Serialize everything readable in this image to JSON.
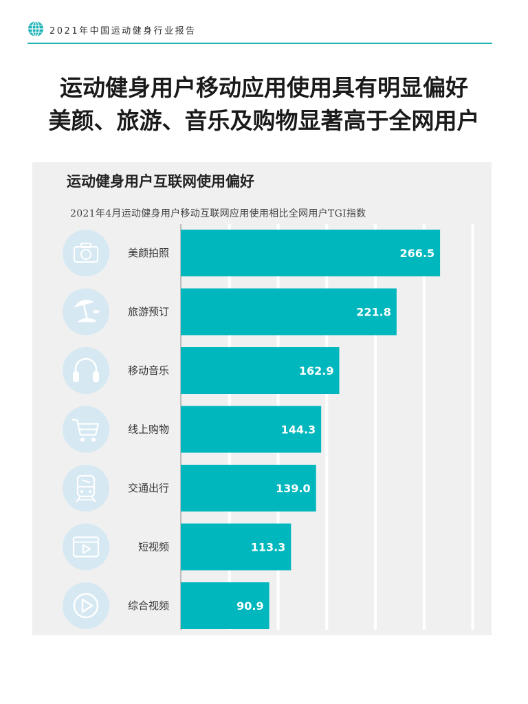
{
  "header": {
    "text": "2021年中国运动健身行业报告"
  },
  "title": {
    "line1": "运动健身用户移动应用使用具有明显偏好",
    "line2": "美颜、旅游、音乐及购物显著高于全网用户"
  },
  "colors": {
    "accent": "#1fb3b6",
    "bar": "#00b7bd",
    "icon_bg": "#d6e8f2",
    "icon_fg": "#ffffff"
  },
  "chart_data": {
    "type": "bar",
    "orientation": "horizontal",
    "title": "运动健身用户互联网使用偏好",
    "subtitle": "2021年4月运动健身用户移动互联网应用使用相比全网用户TGI指数",
    "categories": [
      "美颜拍照",
      "旅游预订",
      "移动音乐",
      "线上购物",
      "交通出行",
      "短视频",
      "综合视频"
    ],
    "values": [
      266.5,
      221.8,
      162.9,
      144.3,
      139.0,
      113.3,
      90.9
    ],
    "value_labels": [
      "266.5",
      "221.8",
      "162.9",
      "144.3",
      "139.0",
      "113.3",
      "90.9"
    ],
    "icons": [
      "camera-icon",
      "beach-umbrella-icon",
      "headphones-icon",
      "shopping-cart-icon",
      "train-icon",
      "video-screen-icon",
      "play-circle-icon"
    ],
    "xlim": [
      0,
      300
    ],
    "grid": true,
    "legend": "none"
  }
}
